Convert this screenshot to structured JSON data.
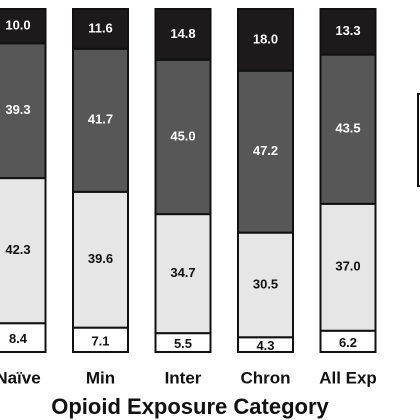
{
  "chart_data": {
    "type": "stacked-bar",
    "x_label": "Opioid Exposure Category",
    "categories": [
      "Naïve",
      "Min",
      "Inter",
      "Chron",
      "All Exp"
    ],
    "ylim": [
      0,
      100
    ],
    "series": [
      {
        "color": "#ffffff",
        "values": [
          8.4,
          7.1,
          5.5,
          4.3,
          6.2
        ],
        "value_labels": [
          "8.4",
          "7.1",
          "5.5",
          "4.3",
          "6.2"
        ]
      },
      {
        "color": "#e6e6e6",
        "values": [
          42.3,
          39.6,
          34.7,
          30.5,
          37.0
        ],
        "value_labels": [
          "42.3",
          "39.6",
          "34.7",
          "30.5",
          "37.0"
        ]
      },
      {
        "color": "#575757",
        "values": [
          39.3,
          41.7,
          45.0,
          47.2,
          43.5
        ],
        "value_labels": [
          "39.3",
          "41.7",
          "45.0",
          "47.2",
          "43.5"
        ]
      },
      {
        "color": "#1c1a1b",
        "values": [
          10.0,
          11.6,
          14.8,
          18.0,
          13.3
        ],
        "value_labels": [
          "10.0",
          "11.6",
          "14.8",
          "18.0",
          "13.3"
        ]
      }
    ]
  }
}
